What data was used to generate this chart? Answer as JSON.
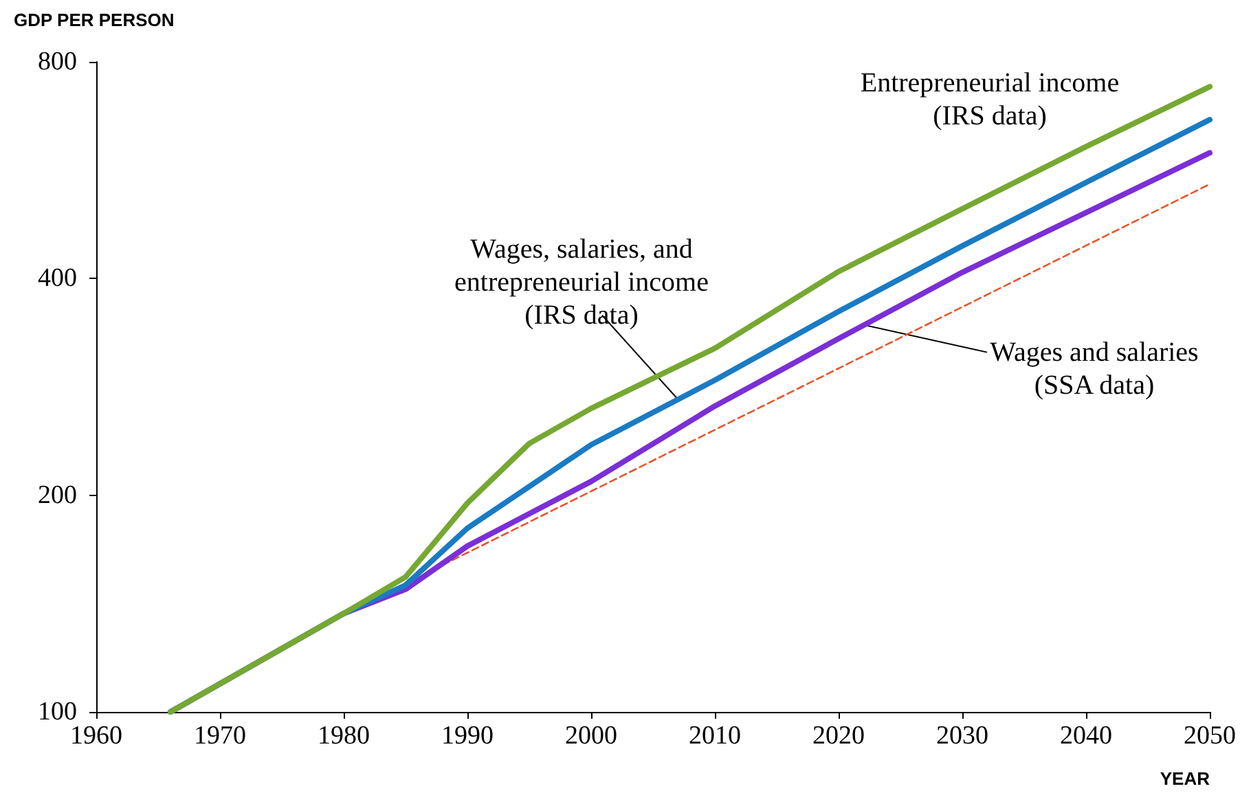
{
  "chart_data": {
    "type": "line",
    "ylabel": "GDP PER PERSON",
    "xlabel": "YEAR",
    "log": "y",
    "xlim": [
      1960,
      2050
    ],
    "xticks": [
      1960,
      1970,
      1980,
      1990,
      2000,
      2010,
      2020,
      2030,
      2040,
      2050
    ],
    "ylim": [
      100,
      800
    ],
    "yticks": [
      100,
      200,
      400,
      800
    ],
    "marker": "none",
    "series": [
      {
        "color": "#e8552a",
        "line_style": "dashed",
        "x": [
          1988,
          2050
        ],
        "values": [
          160,
          541
        ]
      },
      {
        "color": "#7b2fd6",
        "x": [
          1966,
          1980,
          1985,
          1990,
          2000,
          2010,
          2020,
          2030,
          2040,
          2050
        ],
        "values": [
          100,
          137,
          148,
          170,
          209,
          266,
          330,
          408,
          494,
          598
        ]
      },
      {
        "color": "#1a7bc4",
        "x": [
          1966,
          1980,
          1985,
          1990,
          2000,
          2010,
          2020,
          2030,
          2040,
          2050
        ],
        "values": [
          100,
          137,
          150,
          180,
          235,
          289,
          360,
          444,
          544,
          665
        ]
      },
      {
        "color": "#76a832",
        "x": [
          1966,
          1980,
          1985,
          1990,
          1995,
          2000,
          2010,
          2020,
          2030,
          2040,
          2050
        ],
        "values": [
          100,
          137,
          154,
          195,
          236,
          264,
          320,
          409,
          500,
          610,
          739
        ]
      }
    ],
    "annotations": [
      {
        "text": "Entrepreneurial income\n(IRS data)",
        "x": 2040,
        "y": 610
      },
      {
        "text": "Wages, salaries, and\nentrepreneurial income\n(IRS data)",
        "x": 2007,
        "y": 272
      },
      {
        "text": "Wages and salaries\n(SSA data)",
        "x": 2022,
        "y": 345
      }
    ]
  }
}
